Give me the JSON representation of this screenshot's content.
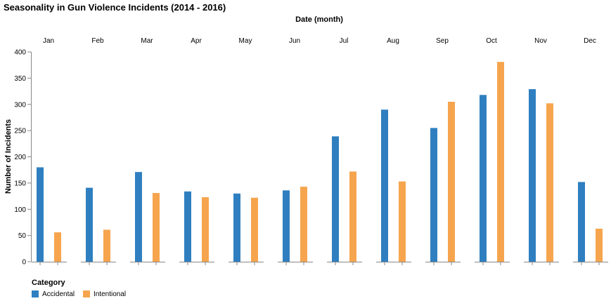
{
  "chart_data": {
    "type": "bar",
    "title": "Seasonality in Gun Violence Incidents (2014 - 2016)",
    "column_title": "Date (month)",
    "ylabel": "Number of Incidents",
    "categories": [
      "Jan",
      "Feb",
      "Mar",
      "Apr",
      "May",
      "Jun",
      "Jul",
      "Aug",
      "Sep",
      "Oct",
      "Nov",
      "Dec"
    ],
    "series": [
      {
        "name": "Accidental",
        "color": "#2f7fc0",
        "values": [
          180,
          141,
          171,
          134,
          130,
          136,
          239,
          290,
          255,
          318,
          329,
          152
        ]
      },
      {
        "name": "Intentional",
        "color": "#f6a54e",
        "values": [
          56,
          61,
          131,
          123,
          122,
          143,
          172,
          153,
          305,
          381,
          302,
          63
        ]
      }
    ],
    "ylim": [
      0,
      400
    ],
    "yticks": [
      0,
      50,
      100,
      150,
      200,
      250,
      300,
      350,
      400
    ],
    "grid": false,
    "legend": {
      "title": "Category",
      "position": "bottom-left"
    }
  }
}
